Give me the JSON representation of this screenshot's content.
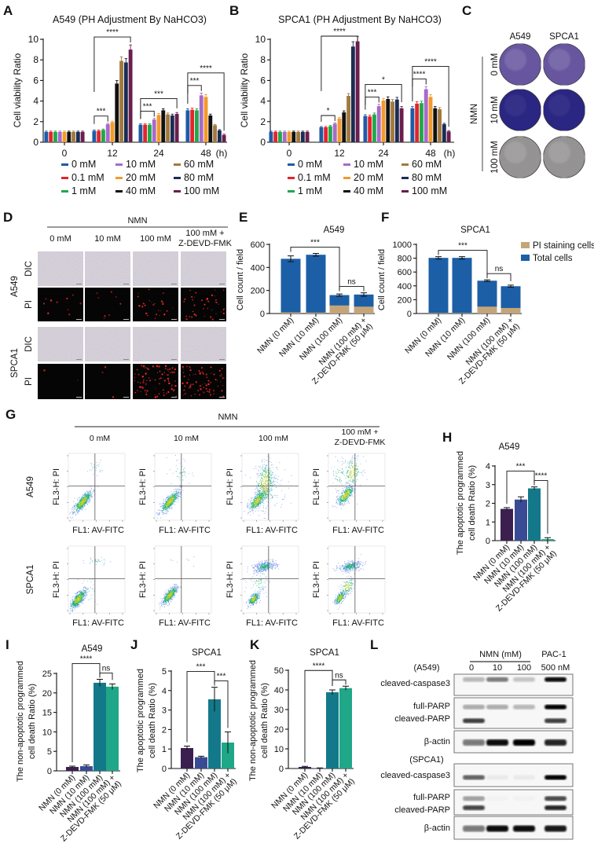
{
  "panel_labels": {
    "A": "A",
    "B": "B",
    "C": "C",
    "D": "D",
    "E": "E",
    "F": "F",
    "G": "G",
    "H": "H",
    "I": "I",
    "J": "J",
    "K": "K",
    "L": "L"
  },
  "chart_data": [
    {
      "id": "A",
      "type": "bar",
      "title": "A549 (PH Adjustment By NaHCO3)",
      "ylabel": [
        "Cell viability Ratio"
      ],
      "xlabel": "(h)",
      "ylim": [
        0,
        10
      ],
      "yticks": [
        0,
        2,
        4,
        6,
        8,
        10
      ],
      "categories": [
        "0",
        "12",
        "24",
        "48"
      ],
      "legend": "bottom",
      "series": [
        {
          "name": "0 mM",
          "color": "#1f5aa6",
          "values": [
            1.0,
            1.1,
            1.7,
            3.1
          ]
        },
        {
          "name": "0.1 mM",
          "color": "#e3242b",
          "values": [
            1.0,
            1.1,
            1.7,
            3.15
          ]
        },
        {
          "name": "1 mM",
          "color": "#22a84a",
          "values": [
            1.0,
            1.2,
            1.7,
            3.1
          ]
        },
        {
          "name": "10 mM",
          "color": "#a66bc8",
          "values": [
            1.0,
            1.75,
            2.2,
            4.55
          ]
        },
        {
          "name": "20 mM",
          "color": "#f39a2a",
          "values": [
            1.0,
            1.95,
            2.65,
            4.4
          ]
        },
        {
          "name": "40 mM",
          "color": "#111111",
          "values": [
            1.0,
            5.7,
            3.1,
            2.6
          ]
        },
        {
          "name": "60 mM",
          "color": "#a27a3e",
          "values": [
            1.0,
            7.9,
            2.7,
            1.65
          ]
        },
        {
          "name": "80 mM",
          "color": "#1b2c55",
          "values": [
            1.0,
            7.75,
            2.6,
            1.15
          ]
        },
        {
          "name": "100 mM",
          "color": "#6a1e4c",
          "values": [
            1.0,
            9.0,
            2.75,
            0.7
          ]
        }
      ],
      "significance": [
        {
          "category": 1,
          "from": 0,
          "to": 3,
          "label": "***"
        },
        {
          "category": 1,
          "from": 0,
          "to": 8,
          "label": "****"
        },
        {
          "category": 2,
          "from": 0,
          "to": 3,
          "label": "***"
        },
        {
          "category": 2,
          "from": 0,
          "to": 8,
          "label": "***"
        },
        {
          "category": 3,
          "from": 0,
          "to": 3,
          "label": "***"
        },
        {
          "category": 3,
          "from": 0,
          "to": 8,
          "label": "****"
        }
      ]
    },
    {
      "id": "B",
      "type": "bar",
      "title": "SPCA1 (PH Adjustment By NaHCO3)",
      "ylabel": [
        "Cell viability Ratio"
      ],
      "xlabel": "(h)",
      "ylim": [
        0,
        10
      ],
      "yticks": [
        0,
        2,
        4,
        6,
        8,
        10
      ],
      "categories": [
        "0",
        "12",
        "24",
        "48"
      ],
      "legend": "bottom",
      "series": [
        {
          "name": "0 mM",
          "color": "#1f5aa6",
          "values": [
            1.0,
            1.45,
            2.55,
            3.3
          ]
        },
        {
          "name": "0.1 mM",
          "color": "#e3242b",
          "values": [
            1.0,
            1.45,
            2.5,
            3.75
          ]
        },
        {
          "name": "1 mM",
          "color": "#22a84a",
          "values": [
            1.0,
            1.55,
            2.7,
            3.8
          ]
        },
        {
          "name": "10 mM",
          "color": "#a66bc8",
          "values": [
            1.0,
            1.8,
            3.5,
            5.15
          ]
        },
        {
          "name": "20 mM",
          "color": "#f39a2a",
          "values": [
            1.0,
            2.3,
            4.05,
            4.4
          ]
        },
        {
          "name": "40 mM",
          "color": "#111111",
          "values": [
            1.0,
            2.9,
            4.2,
            3.3
          ]
        },
        {
          "name": "60 mM",
          "color": "#a27a3e",
          "values": [
            1.0,
            4.5,
            3.95,
            3.2
          ]
        },
        {
          "name": "80 mM",
          "color": "#1b2c55",
          "values": [
            1.0,
            9.3,
            4.15,
            1.75
          ]
        },
        {
          "name": "100 mM",
          "color": "#6a1e4c",
          "values": [
            1.0,
            9.8,
            3.3,
            1.05
          ]
        }
      ],
      "significance": [
        {
          "category": 1,
          "from": 0,
          "to": 3,
          "label": "*"
        },
        {
          "category": 1,
          "from": 0,
          "to": 8,
          "label": "****"
        },
        {
          "category": 2,
          "from": 0,
          "to": 3,
          "label": "***"
        },
        {
          "category": 2,
          "from": 0,
          "to": 8,
          "label": "*"
        },
        {
          "category": 3,
          "from": 0,
          "to": 3,
          "label": "****"
        },
        {
          "category": 3,
          "from": 0,
          "to": 8,
          "label": "****"
        }
      ]
    },
    {
      "id": "E",
      "type": "stacked_bar",
      "title": "A549",
      "ylabel": [
        "Cell count / field"
      ],
      "ylim": [
        0,
        600
      ],
      "yticks": [
        0,
        200,
        400,
        600
      ],
      "categories": [
        [
          "NMN (0 mM)"
        ],
        [
          "NMN (10 mM)"
        ],
        [
          "NMN (100 mM)"
        ],
        [
          "NMN (100 mM) +",
          "Z-DEVD-FMK (50 μM)"
        ]
      ],
      "series": [
        {
          "name": "Total cells",
          "color": "#1d5fa6",
          "values": [
            475,
            510,
            160,
            165
          ],
          "err": [
            25,
            12,
            10,
            15
          ]
        },
        {
          "name": "PI staining cells",
          "color": "#c4a57a",
          "values": [
            10,
            8,
            70,
            60
          ]
        }
      ],
      "significance": [
        {
          "from": 0,
          "to": 2,
          "label": "***"
        },
        {
          "from": 2,
          "to": 3,
          "label": "ns"
        }
      ]
    },
    {
      "id": "F",
      "type": "stacked_bar",
      "title": "SPCA1",
      "ylabel": [
        "Cell count / field"
      ],
      "ylim": [
        0,
        1000
      ],
      "yticks": [
        0,
        200,
        400,
        600,
        800,
        1000
      ],
      "categories": [
        [
          "NMN (0 mM)"
        ],
        [
          "NMN (10 mM)"
        ],
        [
          "NMN (100 mM)"
        ],
        [
          "NMN (100 mM) +",
          "Z-DEVD-FMK (50 μM)"
        ]
      ],
      "legend_position": "right",
      "series": [
        {
          "name": "Total cells",
          "color": "#1d5fa6",
          "values": [
            805,
            805,
            475,
            395
          ],
          "err": [
            18,
            18,
            12,
            15
          ]
        },
        {
          "name": "PI staining cells",
          "color": "#c4a57a",
          "values": [
            8,
            8,
            100,
            80
          ]
        }
      ],
      "legend": [
        {
          "label": "PI staining cells",
          "color": "#c4a57a"
        },
        {
          "label": "Total cells",
          "color": "#1d5fa6"
        }
      ],
      "significance": [
        {
          "from": 0,
          "to": 2,
          "label": "***"
        },
        {
          "from": 2,
          "to": 3,
          "label": "ns"
        }
      ]
    },
    {
      "id": "H",
      "type": "bar",
      "title": "A549",
      "ylabel": [
        "The apoptotic programmed",
        "cell death Ratio (%)"
      ],
      "ylim": [
        0,
        4
      ],
      "yticks": [
        0,
        1,
        2,
        3,
        4
      ],
      "categories": [
        [
          "NMN (0 mM)"
        ],
        [
          "NMN (10 mM)"
        ],
        [
          "NMN (100 mM)"
        ],
        [
          "NMN (100 mM) +",
          "Z-DEVD-FMK (50 μM)"
        ]
      ],
      "values": [
        1.7,
        2.2,
        2.8,
        0.08
      ],
      "err": [
        0.07,
        0.15,
        0.08,
        0.08
      ],
      "colors": [
        "#3b1f4e",
        "#3a4b95",
        "#13798a",
        "#1fa787"
      ],
      "significance": [
        {
          "from": 0,
          "to": 2,
          "label": "***"
        },
        {
          "from": 2,
          "to": 3,
          "label": "****"
        }
      ]
    },
    {
      "id": "I",
      "type": "bar",
      "title": "A549",
      "ylabel": [
        "The non-apoptotic programmed",
        "cell death Ratio (%)"
      ],
      "ylim": [
        0,
        25
      ],
      "yticks": [
        0,
        5,
        10,
        15,
        20,
        25
      ],
      "categories": [
        [
          "NMN (0 mM)"
        ],
        [
          "NMN (10 mM)"
        ],
        [
          "NMN (100 mM)"
        ],
        [
          "NMN (100 mM) +",
          "Z-DEVD-FMK (50 μM)"
        ]
      ],
      "values": [
        1.0,
        1.2,
        22.6,
        21.6
      ],
      "err": [
        0.2,
        0.3,
        0.9,
        0.7
      ],
      "colors": [
        "#3b1f4e",
        "#3a4b95",
        "#13798a",
        "#1fa787"
      ],
      "significance": [
        {
          "from": 0,
          "to": 2,
          "label": "****"
        },
        {
          "from": 2,
          "to": 3,
          "label": "ns"
        }
      ]
    },
    {
      "id": "J",
      "type": "bar",
      "title": "SPCA1",
      "ylabel": [
        "The apoptotic programmed",
        "cell death Ratio (%)"
      ],
      "ylim": [
        0,
        5
      ],
      "yticks": [
        0,
        1,
        2,
        3,
        4,
        5
      ],
      "categories": [
        [
          "NMN (0 mM)"
        ],
        [
          "NMN (10 mM)"
        ],
        [
          "NMN (100 mM)"
        ],
        [
          "NMN (100 mM) +",
          "Z-DEVD-FMK (50 μM)"
        ]
      ],
      "values": [
        1.05,
        0.58,
        3.55,
        1.33
      ],
      "err": [
        0.1,
        0.05,
        0.62,
        0.55
      ],
      "colors": [
        "#3b1f4e",
        "#3a4b95",
        "#13798a",
        "#1fa787"
      ],
      "significance": [
        {
          "from": 0,
          "to": 2,
          "label": "***"
        },
        {
          "from": 2,
          "to": 3,
          "label": "***"
        }
      ]
    },
    {
      "id": "K",
      "type": "bar",
      "title": "SPCA1",
      "ylabel": [
        "The non-apoptotic programmed",
        "cell death Ratio (%)"
      ],
      "ylim": [
        0,
        50
      ],
      "yticks": [
        0,
        10,
        20,
        30,
        40,
        50
      ],
      "categories": [
        [
          "NMN (0 mM)"
        ],
        [
          "NMN (10 mM)"
        ],
        [
          "NMN (100 mM)"
        ],
        [
          "NMN (100 mM) +",
          "Z-DEVD-FMK (50 μM)"
        ]
      ],
      "values": [
        0.8,
        0.2,
        38.8,
        40.9
      ],
      "err": [
        0.3,
        0.1,
        1.2,
        1.0
      ],
      "colors": [
        "#3b1f4e",
        "#3a4b95",
        "#13798a",
        "#1fa787"
      ],
      "significance": [
        {
          "from": 0,
          "to": 2,
          "label": "****"
        },
        {
          "from": 2,
          "to": 3,
          "label": "ns"
        }
      ]
    }
  ],
  "panel_c": {
    "columns": [
      "A549",
      "SPCA1"
    ],
    "group_label": "NMN",
    "rows": [
      "0 mM",
      "10 mM",
      "100 mM"
    ],
    "stain_colors": [
      "#6c5aa6",
      "#2c2888",
      "#9b9999"
    ]
  },
  "panel_d": {
    "group_label": "NMN",
    "columns": [
      [
        "0 mM"
      ],
      [
        "10 mM"
      ],
      [
        "100 mM"
      ],
      [
        "100 mM +",
        "Z-DEVD-FMK"
      ]
    ],
    "cell_lines": [
      "A549",
      "SPCA1"
    ],
    "channels": [
      "DIC",
      "PI"
    ]
  },
  "panel_g": {
    "group_label": "NMN",
    "columns": [
      [
        "0 mM"
      ],
      [
        "10 mM"
      ],
      [
        "100 mM"
      ],
      [
        "100 mM +",
        "Z-DEVD-FMK"
      ]
    ],
    "cell_lines": [
      "A549",
      "SPCA1"
    ],
    "y_axis": "FL3-H: PI",
    "x_axis": "FL1: AV-FITC"
  },
  "panel_l": {
    "group_label": "NMN (mM)",
    "treatment": "PAC-1",
    "lanes": [
      "0",
      "10",
      "100",
      "500 nM"
    ],
    "blocks": [
      {
        "cell_line": "(A549)",
        "rows": [
          [
            "cleaved-caspase3"
          ],
          [
            "full-PARP",
            "cleaved-PARP"
          ],
          [
            "β-actin"
          ]
        ]
      },
      {
        "cell_line": "(SPCA1)",
        "rows": [
          [
            "cleaved-caspase3"
          ],
          [
            "full-PARP",
            "cleaved-PARP"
          ],
          [
            "β-actin"
          ]
        ]
      }
    ]
  }
}
